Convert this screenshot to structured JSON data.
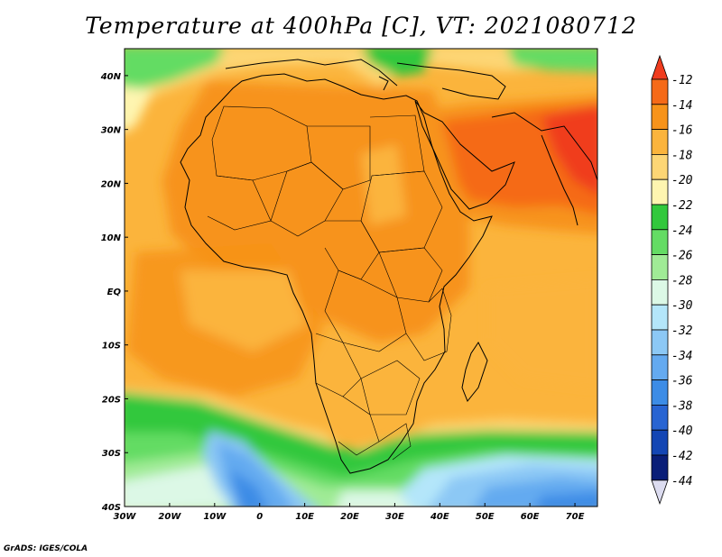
{
  "title": "Temperature at 400hPa [C], VT: 2021080712",
  "credit": "GrADS: IGES/COLA",
  "map": {
    "lon_range": [
      -30,
      75
    ],
    "lat_range": [
      -40,
      45
    ],
    "lon_ticks": [
      {
        "value": -30,
        "label": "30W"
      },
      {
        "value": -20,
        "label": "20W"
      },
      {
        "value": -10,
        "label": "10W"
      },
      {
        "value": 0,
        "label": "0"
      },
      {
        "value": 10,
        "label": "10E"
      },
      {
        "value": 20,
        "label": "20E"
      },
      {
        "value": 30,
        "label": "30E"
      },
      {
        "value": 40,
        "label": "40E"
      },
      {
        "value": 50,
        "label": "50E"
      },
      {
        "value": 60,
        "label": "60E"
      },
      {
        "value": 70,
        "label": "70E"
      }
    ],
    "lat_ticks": [
      {
        "value": 40,
        "label": "40N"
      },
      {
        "value": 30,
        "label": "30N"
      },
      {
        "value": 20,
        "label": "20N"
      },
      {
        "value": 10,
        "label": "10N"
      },
      {
        "value": 0,
        "label": "EQ"
      },
      {
        "value": -10,
        "label": "10S"
      },
      {
        "value": -20,
        "label": "20S"
      },
      {
        "value": -30,
        "label": "30S"
      },
      {
        "value": -40,
        "label": "40S"
      }
    ]
  },
  "colorbar": {
    "labels": [
      "-12",
      "-14",
      "-16",
      "-18",
      "-20",
      "-22",
      "-24",
      "-26",
      "-28",
      "-30",
      "-32",
      "-34",
      "-36",
      "-38",
      "-40",
      "-42",
      "-44"
    ],
    "colors": [
      "#f03c1e",
      "#f56a18",
      "#f7931a",
      "#fbb43c",
      "#fdd675",
      "#fef5b0",
      "#32c83c",
      "#64dc64",
      "#a0eb96",
      "#dcf8e6",
      "#b4e6fa",
      "#8cc8f5",
      "#64aaf0",
      "#3c8ce6",
      "#2864d2",
      "#1446b4",
      "#0a1e78",
      "#dcdcf0"
    ]
  }
}
